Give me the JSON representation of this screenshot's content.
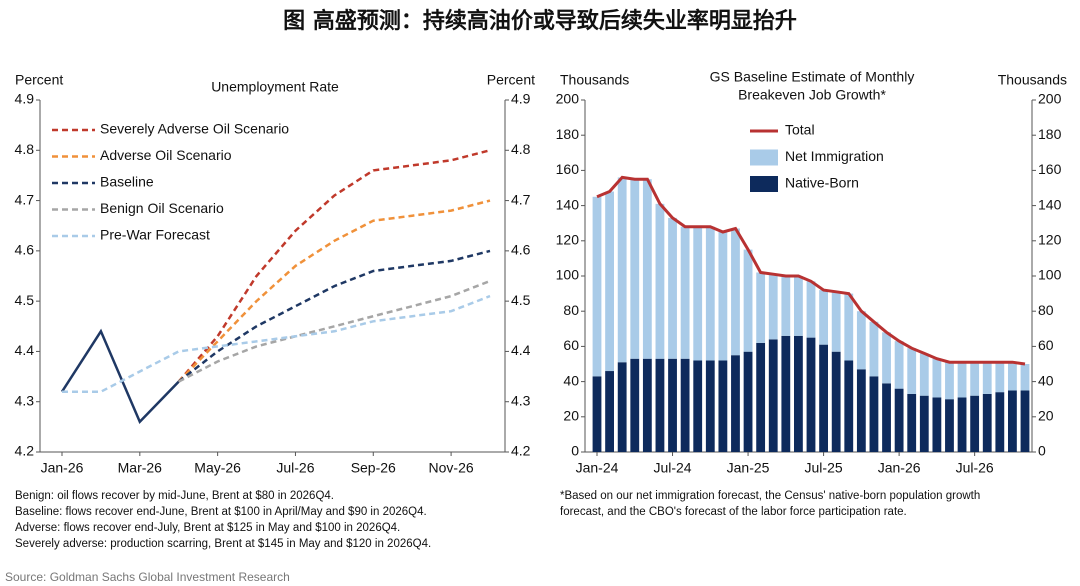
{
  "title": "图 高盛预测：持续高油价或导致后续失业率明显抬升",
  "source": "Source: Goldman Sachs Global Investment Research",
  "chart_data": [
    {
      "type": "line",
      "title": "Unemployment Rate",
      "ylabel": "Percent",
      "categories": [
        "Jan-26",
        null,
        "Mar-26",
        null,
        "May-26",
        null,
        "Jul-26",
        null,
        "Sep-26",
        null,
        "Nov-26",
        null
      ],
      "ylim": [
        4.2,
        4.9
      ],
      "yticks": [
        4.2,
        4.3,
        4.4,
        4.5,
        4.6,
        4.7,
        4.8,
        4.9
      ],
      "legend": "upper left",
      "series": [
        {
          "color": "#1f3864",
          "dashed": false,
          "values": [
            4.32,
            4.44,
            4.26,
            4.34,
            null,
            null,
            null,
            null,
            null,
            null,
            null,
            null
          ]
        },
        {
          "name": "Severely Adverse Oil Scenario",
          "color": "#c0392b",
          "dashed": true,
          "values": [
            null,
            null,
            null,
            4.34,
            4.43,
            4.55,
            4.64,
            4.71,
            4.76,
            4.77,
            4.78,
            4.8
          ]
        },
        {
          "name": "Adverse Oil Scenario",
          "color": "#f0913a",
          "dashed": true,
          "values": [
            null,
            null,
            null,
            4.34,
            4.42,
            4.5,
            4.57,
            4.62,
            4.66,
            4.67,
            4.68,
            4.7
          ]
        },
        {
          "name": "Baseline",
          "color": "#1f3864",
          "dashed": true,
          "values": [
            null,
            null,
            null,
            4.34,
            4.4,
            4.45,
            4.49,
            4.53,
            4.56,
            4.57,
            4.58,
            4.6
          ]
        },
        {
          "name": "Benign Oil Scenario",
          "color": "#a6a6a6",
          "dashed": true,
          "values": [
            null,
            null,
            null,
            4.34,
            4.38,
            4.41,
            4.43,
            4.45,
            4.47,
            4.49,
            4.51,
            4.54
          ]
        },
        {
          "name": "Pre-War Forecast",
          "color": "#a9cbe8",
          "dashed": true,
          "values": [
            4.32,
            4.32,
            4.36,
            4.4,
            4.41,
            4.42,
            4.43,
            4.44,
            4.46,
            4.47,
            4.48,
            4.51
          ]
        }
      ],
      "notes": [
        "Benign: oil flows recover by mid-June, Brent at $80 in 2026Q4.",
        "Baseline: flows recover end-June, Brent at $100 in April/May and $90 in 2026Q4.",
        "Adverse: flows recover end-July, Brent at $125 in May and $100 in 2026Q4.",
        "Severely adverse: production scarring, Brent at $145 in May and $120 in 2026Q4."
      ]
    },
    {
      "type": "bar",
      "stacked": true,
      "title": [
        "GS Baseline Estimate of Monthly",
        "Breakeven Job Growth*"
      ],
      "ylabel": "Thousands",
      "categories": [
        "Jan-24",
        null,
        null,
        null,
        null,
        null,
        "Jul-24",
        null,
        null,
        null,
        null,
        null,
        "Jan-25",
        null,
        null,
        null,
        null,
        null,
        "Jul-25",
        null,
        null,
        null,
        null,
        null,
        "Jan-26",
        null,
        null,
        null,
        null,
        null,
        "Jul-26",
        null,
        null,
        null,
        null
      ],
      "ylim": [
        0,
        200
      ],
      "yticks": [
        0,
        20,
        40,
        60,
        80,
        100,
        120,
        140,
        160,
        180,
        200
      ],
      "legend": "upper center",
      "series": [
        {
          "name": "Total",
          "type": "line",
          "color": "#b83232",
          "values": [
            145,
            148,
            156,
            155,
            155,
            141,
            133,
            128,
            128,
            128,
            125,
            127,
            115,
            102,
            101,
            100,
            100,
            97,
            92,
            91,
            90,
            80,
            74,
            68,
            63,
            59,
            56,
            53,
            51,
            51,
            51,
            51,
            51,
            51,
            50
          ]
        },
        {
          "name": "Net Immigration",
          "type": "bar",
          "color": "#a9cbe8",
          "values": [
            102,
            102,
            105,
            102,
            102,
            88,
            80,
            75,
            76,
            76,
            73,
            72,
            58,
            40,
            37,
            34,
            34,
            32,
            31,
            34,
            38,
            33,
            31,
            29,
            27,
            26,
            24,
            22,
            21,
            20,
            19,
            18,
            17,
            16,
            15
          ]
        },
        {
          "name": "Native-Born",
          "type": "bar",
          "color": "#0d2a5c",
          "values": [
            43,
            46,
            51,
            53,
            53,
            53,
            53,
            53,
            52,
            52,
            52,
            55,
            57,
            62,
            64,
            66,
            66,
            65,
            61,
            57,
            52,
            47,
            43,
            39,
            36,
            33,
            32,
            31,
            30,
            31,
            32,
            33,
            34,
            35,
            35
          ]
        }
      ],
      "notes": [
        "*Based on our net immigration forecast, the Census' native-born population growth",
        "forecast, and the CBO's forecast of the labor force participation rate."
      ]
    }
  ]
}
